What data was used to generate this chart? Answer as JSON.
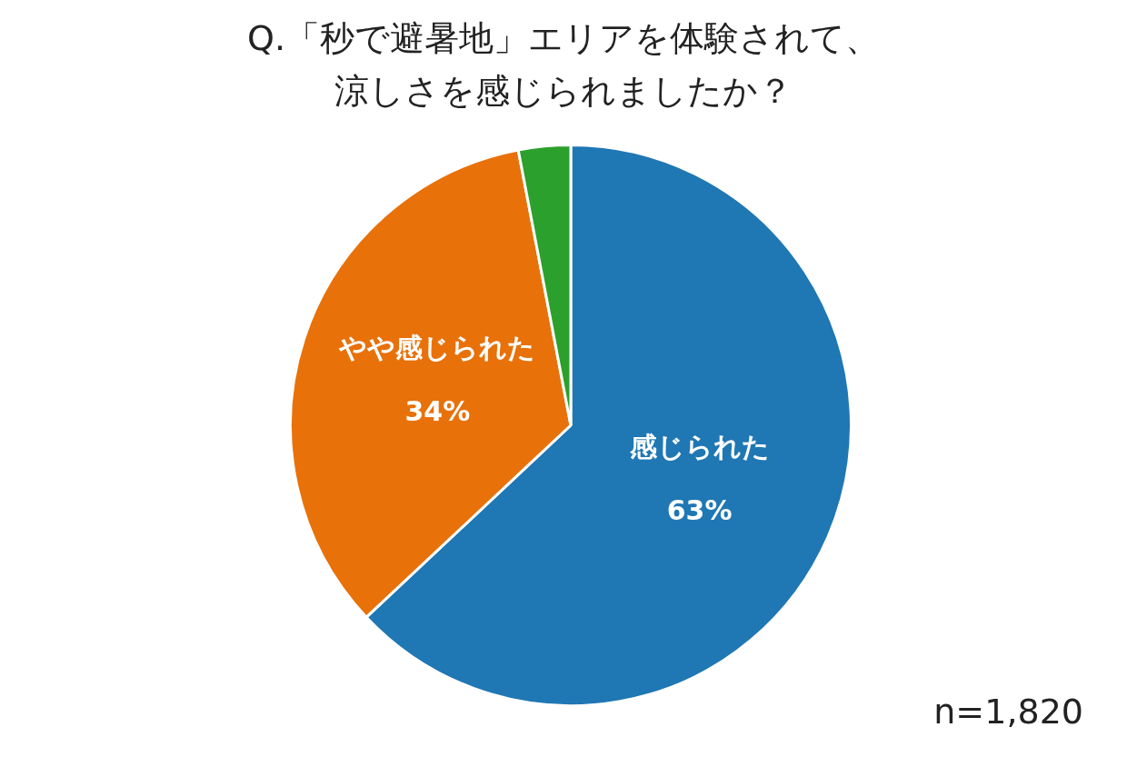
{
  "chart_data": {
    "type": "pie",
    "title": "Q.「秒で避暑地」エリアを体験されて、涼しさを感じられましたか？",
    "categories": [
      "感じられた",
      "やや感じられた",
      null
    ],
    "values": [
      63,
      34,
      3
    ],
    "colors": [
      "#1f77b4",
      "#e8710a",
      "#2ca02c"
    ],
    "value_labels": [
      "63%",
      "34%",
      null
    ],
    "legend": false,
    "annotations": [
      "n=1,820"
    ]
  }
}
